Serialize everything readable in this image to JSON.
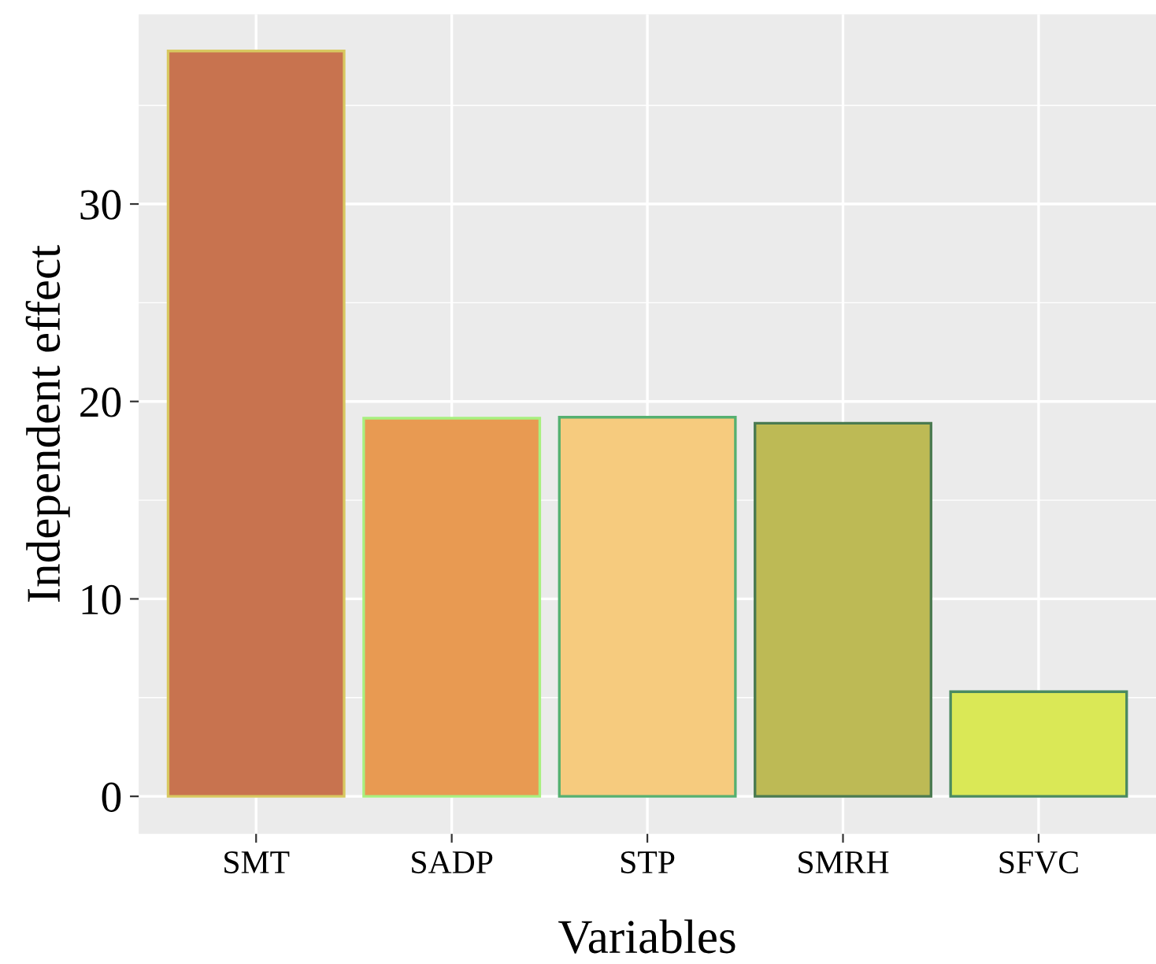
{
  "chart_data": {
    "type": "bar",
    "xlabel": "Variables",
    "ylabel": "Independent effect",
    "categories": [
      "SMT",
      "SADP",
      "STP",
      "SMRH",
      "SFVC"
    ],
    "values": [
      37.75,
      19.15,
      19.2,
      18.9,
      5.3
    ],
    "colors": [
      "#c8734f",
      "#e89a52",
      "#f6cb7e",
      "#bdba55",
      "#dae856"
    ],
    "ylim": [
      -1.9,
      39.6
    ],
    "yticks": [
      0,
      10,
      20,
      30
    ],
    "grid": true
  }
}
